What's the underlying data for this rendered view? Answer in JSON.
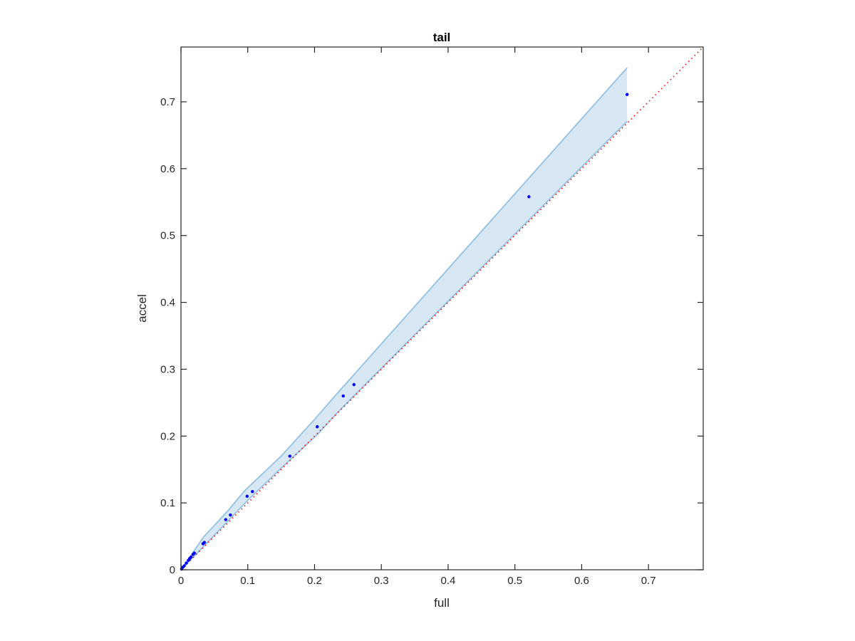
{
  "chart_data": {
    "type": "scatter",
    "title": "tail",
    "xlabel": "full",
    "ylabel": "accel",
    "xlim": [
      0,
      0.782
    ],
    "ylim": [
      0,
      0.782
    ],
    "xticks": [
      "0",
      "0.1",
      "0.2",
      "0.3",
      "0.4",
      "0.5",
      "0.6",
      "0.7"
    ],
    "yticks": [
      "0",
      "0.1",
      "0.2",
      "0.3",
      "0.4",
      "0.5",
      "0.6",
      "0.7"
    ],
    "grid": false,
    "colors": {
      "points": "#0000ff",
      "band_fill": "#d8e7f4",
      "band_edge": "#94c2e2",
      "diagonal": "#ff0000"
    },
    "points": [
      [
        0.001,
        0.001
      ],
      [
        0.003,
        0.004
      ],
      [
        0.005,
        0.006
      ],
      [
        0.008,
        0.01
      ],
      [
        0.011,
        0.014
      ],
      [
        0.013,
        0.017
      ],
      [
        0.015,
        0.019
      ],
      [
        0.018,
        0.023
      ],
      [
        0.02,
        0.025
      ],
      [
        0.033,
        0.039
      ],
      [
        0.035,
        0.041
      ],
      [
        0.067,
        0.075
      ],
      [
        0.074,
        0.082
      ],
      [
        0.099,
        0.11
      ],
      [
        0.107,
        0.117
      ],
      [
        0.163,
        0.17
      ],
      [
        0.204,
        0.214
      ],
      [
        0.243,
        0.26
      ],
      [
        0.259,
        0.277
      ],
      [
        0.521,
        0.558
      ],
      [
        0.668,
        0.711
      ]
    ],
    "band_upper": [
      [
        0,
        0
      ],
      [
        0.01,
        0.014
      ],
      [
        0.033,
        0.048
      ],
      [
        0.07,
        0.088
      ],
      [
        0.095,
        0.118
      ],
      [
        0.15,
        0.17
      ],
      [
        0.2,
        0.225
      ],
      [
        0.235,
        0.265
      ],
      [
        0.26,
        0.293
      ],
      [
        0.668,
        0.751
      ]
    ],
    "band_lower": [
      [
        0,
        0
      ],
      [
        0.033,
        0.034
      ],
      [
        0.1,
        0.104
      ],
      [
        0.15,
        0.152
      ],
      [
        0.206,
        0.204
      ],
      [
        0.235,
        0.236
      ],
      [
        0.668,
        0.671
      ]
    ],
    "reference_line": "y = x (dotted)"
  }
}
